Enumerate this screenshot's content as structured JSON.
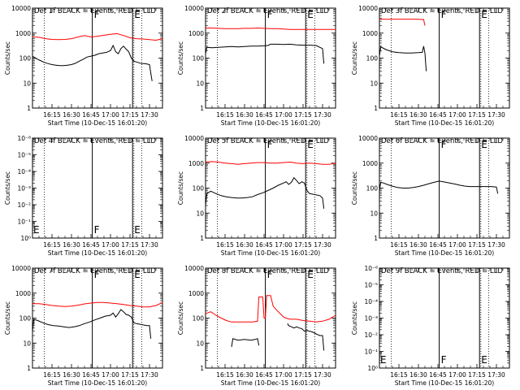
{
  "chart_data": [
    {
      "type": "line",
      "title": "Det 1f BLACK = Events, RED = LLD",
      "ylabel": "Counts/sec",
      "xlabel": "Start Time (10-Dec-15 16:01:20)",
      "yscale": "log",
      "ylim_exp": [
        0,
        4
      ],
      "ytick_labels": [
        "1",
        "10",
        "100",
        "1000",
        "10000"
      ],
      "xlim": [
        0,
        100
      ],
      "xtick_labels": [
        "16:15",
        "16:30",
        "16:45",
        "17:00",
        "17:15",
        "17:30"
      ],
      "xtick_positions": [
        15,
        30,
        45,
        60,
        75,
        90
      ],
      "markers": [
        {
          "x": 46,
          "label": "F"
        },
        {
          "x": 77,
          "label": "E"
        }
      ],
      "dotted_x": [
        9,
        78,
        84
      ],
      "series": [
        {
          "color": "#000000",
          "x": [
            0,
            3,
            6,
            9,
            12,
            15,
            18,
            21,
            24,
            27,
            30,
            33,
            36,
            39,
            42,
            45,
            48,
            51,
            54,
            57,
            60,
            62,
            64,
            66,
            68,
            70,
            72,
            74,
            76,
            78,
            80,
            82,
            84,
            86,
            88,
            90,
            91,
            92
          ],
          "y": [
            120,
            95,
            80,
            68,
            60,
            55,
            52,
            50,
            50,
            52,
            55,
            62,
            75,
            90,
            110,
            120,
            130,
            150,
            160,
            170,
            200,
            320,
            180,
            150,
            240,
            300,
            230,
            180,
            100,
            75,
            70,
            65,
            60,
            60,
            58,
            55,
            25,
            12
          ]
        },
        {
          "color": "#ff0000",
          "x": [
            0,
            5,
            10,
            15,
            20,
            25,
            30,
            35,
            40,
            45,
            50,
            55,
            60,
            65,
            70,
            75,
            80,
            85,
            90,
            95,
            100
          ],
          "y": [
            700,
            680,
            600,
            560,
            550,
            560,
            600,
            700,
            800,
            700,
            750,
            820,
            900,
            950,
            800,
            650,
            600,
            580,
            550,
            520,
            600
          ]
        }
      ]
    },
    {
      "type": "line",
      "title": "Det 2f BLACK = Events, RED = LLD",
      "ylabel": "Counts/sec",
      "xlabel": "Start Time (10-Dec-15 16:01:20)",
      "yscale": "log",
      "ylim_exp": [
        0,
        4
      ],
      "ytick_labels": [
        "1",
        "10",
        "100",
        "1000",
        "10000"
      ],
      "xlim": [
        0,
        100
      ],
      "xtick_labels": [
        "16:15",
        "16:30",
        "16:45",
        "17:00",
        "17:15",
        "17:30"
      ],
      "xtick_positions": [
        15,
        30,
        45,
        60,
        75,
        90
      ],
      "markers": [
        {
          "x": 46,
          "label": "F"
        },
        {
          "x": 77,
          "label": "E"
        }
      ],
      "dotted_x": [
        9,
        78,
        84
      ],
      "series": [
        {
          "color": "#000000",
          "x": [
            0,
            1,
            5,
            10,
            15,
            20,
            25,
            30,
            35,
            40,
            45,
            48,
            50,
            55,
            60,
            65,
            70,
            75,
            80,
            85,
            90,
            91
          ],
          "y": [
            150,
            270,
            260,
            270,
            280,
            290,
            280,
            290,
            300,
            300,
            310,
            320,
            360,
            360,
            350,
            360,
            340,
            330,
            330,
            320,
            240,
            60
          ]
        },
        {
          "color": "#ff0000",
          "x": [
            0,
            5,
            10,
            15,
            20,
            25,
            30,
            35,
            40,
            45,
            50,
            55,
            60,
            65,
            70,
            75,
            80,
            85,
            90,
            95,
            100
          ],
          "y": [
            1600,
            1600,
            1550,
            1500,
            1500,
            1500,
            1550,
            1550,
            1600,
            1550,
            1500,
            1500,
            1450,
            1400,
            1400,
            1400,
            1400,
            1400,
            1400,
            1400,
            1400
          ]
        }
      ]
    },
    {
      "type": "line",
      "title": "Det 3f BLACK = Events, RED = LLD",
      "ylabel": "Counts/sec",
      "xlabel": "Start Time (10-Dec-15 16:01:20)",
      "yscale": "log",
      "ylim_exp": [
        0,
        4
      ],
      "ytick_labels": [
        "1",
        "10",
        "100",
        "1000",
        "10000"
      ],
      "xlim": [
        0,
        100
      ],
      "xtick_labels": [
        "16:15",
        "16:30",
        "16:45",
        "17:00",
        "17:15",
        "17:30"
      ],
      "xtick_positions": [
        15,
        30,
        45,
        60,
        75,
        90
      ],
      "markers": [
        {
          "x": 46,
          "label": "F"
        },
        {
          "x": 77,
          "label": "E"
        }
      ],
      "dotted_x": [
        9,
        78,
        84
      ],
      "series": [
        {
          "color": "#000000",
          "x": [
            0,
            1,
            5,
            10,
            15,
            20,
            25,
            30,
            33,
            34,
            35,
            36
          ],
          "y": [
            120,
            280,
            220,
            180,
            165,
            160,
            160,
            165,
            170,
            300,
            160,
            30
          ]
        },
        {
          "color": "#ff0000",
          "x": [
            0,
            5,
            10,
            15,
            20,
            25,
            30,
            34,
            35
          ],
          "y": [
            3600,
            3600,
            3600,
            3600,
            3600,
            3600,
            3550,
            3500,
            2000
          ]
        }
      ]
    },
    {
      "type": "line",
      "title": "Det 4f BLACK = Events, RED = LLD",
      "ylabel": "Counts/sec",
      "xlabel": "Start Time (10-Dec-15 16:01:20)",
      "yscale": "log",
      "ylim_exp": [
        0,
        6
      ],
      "ytick_labels": [
        "10⁰",
        "10⁻¹",
        "10⁻²",
        "10⁻³",
        "10⁻⁴",
        "10⁻⁵",
        "10⁻⁶"
      ],
      "xlim": [
        0,
        100
      ],
      "xtick_labels": [
        "16:15",
        "16:30",
        "16:45",
        "17:00",
        "17:15",
        "17:30"
      ],
      "xtick_positions": [
        15,
        30,
        45,
        60,
        75,
        90
      ],
      "markers": [
        {
          "x": 46,
          "label": "F"
        },
        {
          "x": 77,
          "label": "E"
        }
      ],
      "dotted_x": [
        9,
        78,
        84
      ],
      "corner_label": "E",
      "series": []
    },
    {
      "type": "line",
      "title": "Det 5f BLACK = Events, RED = LLD",
      "ylabel": "Counts/sec",
      "xlabel": "Start Time (10-Dec-15 16:01:20)",
      "yscale": "log",
      "ylim_exp": [
        0,
        4
      ],
      "ytick_labels": [
        "1",
        "10",
        "100",
        "1000",
        "10000"
      ],
      "xlim": [
        0,
        100
      ],
      "xtick_labels": [
        "16:15",
        "16:30",
        "16:45",
        "17:00",
        "17:15",
        "17:30"
      ],
      "xtick_positions": [
        15,
        30,
        45,
        60,
        75,
        90
      ],
      "markers": [
        {
          "x": 46,
          "label": "F"
        },
        {
          "x": 77,
          "label": "E"
        }
      ],
      "dotted_x": [
        9,
        78,
        84
      ],
      "series": [
        {
          "color": "#000000",
          "x": [
            0,
            1,
            4,
            8,
            12,
            16,
            20,
            24,
            28,
            32,
            36,
            40,
            44,
            48,
            52,
            56,
            60,
            62,
            64,
            66,
            68,
            70,
            72,
            74,
            76,
            78,
            80,
            84,
            88,
            90,
            91
          ],
          "y": [
            20,
            60,
            75,
            60,
            50,
            45,
            42,
            40,
            40,
            42,
            45,
            55,
            65,
            80,
            100,
            130,
            160,
            180,
            140,
            170,
            260,
            200,
            150,
            180,
            160,
            80,
            60,
            55,
            50,
            40,
            15
          ]
        },
        {
          "color": "#ff0000",
          "x": [
            0,
            5,
            10,
            15,
            20,
            25,
            30,
            35,
            40,
            45,
            50,
            55,
            60,
            65,
            70,
            75,
            80,
            85,
            90,
            95,
            100
          ],
          "y": [
            1100,
            1150,
            1100,
            1000,
            950,
            900,
            950,
            1000,
            1050,
            1050,
            1000,
            1000,
            1050,
            1100,
            1000,
            950,
            1000,
            950,
            900,
            900,
            1000
          ]
        }
      ]
    },
    {
      "type": "line",
      "title": "Det 6f BLACK = Events, RED = LLD",
      "ylabel": "Counts/sec",
      "xlabel": "Start Time (10-Dec-15 16:01:20)",
      "yscale": "log",
      "ylim_exp": [
        0,
        4
      ],
      "ytick_labels": [
        "1",
        "10",
        "100",
        "1000",
        "10000"
      ],
      "xlim": [
        0,
        100
      ],
      "xtick_labels": [
        "16:15",
        "16:30",
        "16:45",
        "17:00",
        "17:15",
        "17:30"
      ],
      "xtick_positions": [
        15,
        30,
        45,
        60,
        75,
        90
      ],
      "markers": [
        {
          "x": 46,
          "label": "F"
        },
        {
          "x": 77,
          "label": "E"
        }
      ],
      "dotted_x": [
        9,
        78,
        84
      ],
      "series": [
        {
          "color": "#000000",
          "x": [
            0,
            1,
            3,
            6,
            10,
            14,
            18,
            22,
            26,
            30,
            34,
            38,
            42,
            46,
            50,
            54,
            58,
            62,
            66,
            70,
            74,
            78,
            82,
            86,
            90,
            91
          ],
          "y": [
            80,
            170,
            160,
            140,
            120,
            105,
            100,
            100,
            105,
            115,
            130,
            150,
            170,
            190,
            175,
            160,
            145,
            130,
            120,
            115,
            115,
            115,
            115,
            115,
            110,
            60
          ]
        }
      ]
    },
    {
      "type": "line",
      "title": "Det 7f BLACK = Events, RED = LLD",
      "ylabel": "Counts/sec",
      "xlabel": "Start Time (10-Dec-15 16:01:20)",
      "yscale": "log",
      "ylim_exp": [
        0,
        4
      ],
      "ytick_labels": [
        "1",
        "10",
        "100",
        "1000",
        "10000"
      ],
      "xlim": [
        0,
        100
      ],
      "xtick_labels": [
        "16:15",
        "16:30",
        "16:45",
        "17:00",
        "17:15",
        "17:30"
      ],
      "xtick_positions": [
        15,
        30,
        45,
        60,
        75,
        90
      ],
      "markers": [
        {
          "x": 46,
          "label": "F"
        },
        {
          "x": 77,
          "label": "E"
        }
      ],
      "dotted_x": [
        9,
        78,
        84
      ],
      "series": [
        {
          "color": "#000000",
          "x": [
            0,
            1,
            4,
            8,
            12,
            16,
            20,
            24,
            28,
            32,
            36,
            40,
            44,
            48,
            52,
            56,
            60,
            62,
            64,
            66,
            68,
            70,
            72,
            74,
            76,
            78,
            80,
            84,
            88,
            90,
            91
          ],
          "y": [
            30,
            90,
            80,
            65,
            55,
            50,
            48,
            45,
            42,
            45,
            50,
            60,
            70,
            85,
            100,
            120,
            130,
            160,
            110,
            150,
            220,
            180,
            140,
            130,
            110,
            65,
            60,
            55,
            50,
            50,
            15
          ]
        },
        {
          "color": "#ff0000",
          "x": [
            0,
            5,
            10,
            15,
            20,
            25,
            30,
            35,
            40,
            45,
            50,
            55,
            60,
            65,
            70,
            75,
            80,
            85,
            90,
            95,
            100
          ],
          "y": [
            380,
            380,
            350,
            320,
            300,
            290,
            300,
            330,
            370,
            400,
            420,
            420,
            400,
            380,
            350,
            320,
            300,
            280,
            280,
            320,
            420
          ]
        }
      ]
    },
    {
      "type": "line",
      "title": "Det 8f BLACK = Events, RED = LLD",
      "ylabel": "Counts/sec",
      "xlabel": "Start Time (10-Dec-15 16:01:20)",
      "yscale": "log",
      "ylim_exp": [
        0,
        4
      ],
      "ytick_labels": [
        "1",
        "10",
        "100",
        "1000",
        "10000"
      ],
      "xlim": [
        0,
        100
      ],
      "xtick_labels": [
        "16:15",
        "16:30",
        "16:45",
        "17:00",
        "17:15",
        "17:30"
      ],
      "xtick_positions": [
        15,
        30,
        45,
        60,
        75,
        90
      ],
      "markers": [
        {
          "x": 46,
          "label": "F"
        },
        {
          "x": 77,
          "label": "E"
        }
      ],
      "dotted_x": [
        9,
        78,
        84
      ],
      "series": [
        {
          "color": "#000000",
          "x": [
            20,
            21,
            25,
            30,
            35,
            38,
            40,
            41
          ],
          "y": [
            7,
            15,
            13,
            14,
            13,
            14,
            15,
            8
          ]
        },
        {
          "color": "#000000",
          "x": [
            63,
            64,
            66,
            68,
            70,
            72,
            74,
            76,
            78,
            80,
            82,
            84,
            86,
            88,
            90,
            91
          ],
          "y": [
            60,
            50,
            45,
            40,
            45,
            40,
            38,
            30,
            32,
            30,
            28,
            25,
            22,
            20,
            20,
            5
          ]
        },
        {
          "color": "#ff0000",
          "x": [
            0,
            4,
            8,
            12,
            16,
            20,
            24,
            28,
            32,
            36,
            40,
            41,
            44,
            45,
            46,
            47,
            50,
            52,
            55,
            58,
            60,
            62,
            65,
            70,
            75,
            80,
            85,
            90,
            95,
            100
          ],
          "y": [
            150,
            180,
            130,
            100,
            80,
            70,
            70,
            70,
            70,
            70,
            75,
            700,
            700,
            100,
            100,
            800,
            800,
            300,
            200,
            140,
            110,
            100,
            90,
            90,
            80,
            75,
            70,
            75,
            90,
            130
          ]
        }
      ]
    },
    {
      "type": "line",
      "title": "Det 9f BLACK = Events, RED = LLD",
      "ylabel": "Counts/sec",
      "xlabel": "Start Time (10-Dec-15 16:01:20)",
      "yscale": "log",
      "ylim_exp": [
        0,
        6
      ],
      "ytick_labels": [
        "10⁰",
        "10⁻¹",
        "10⁻²",
        "10⁻³",
        "10⁻⁴",
        "10⁻⁵",
        "10⁻⁶"
      ],
      "xlim": [
        0,
        100
      ],
      "xtick_labels": [
        "16:15",
        "16:30",
        "16:45",
        "17:00",
        "17:15",
        "17:30"
      ],
      "xtick_positions": [
        15,
        30,
        45,
        60,
        75,
        90
      ],
      "markers": [
        {
          "x": 46,
          "label": "F"
        },
        {
          "x": 77,
          "label": "E"
        }
      ],
      "dotted_x": [
        9,
        78,
        84
      ],
      "corner_label": "E",
      "series": []
    }
  ]
}
